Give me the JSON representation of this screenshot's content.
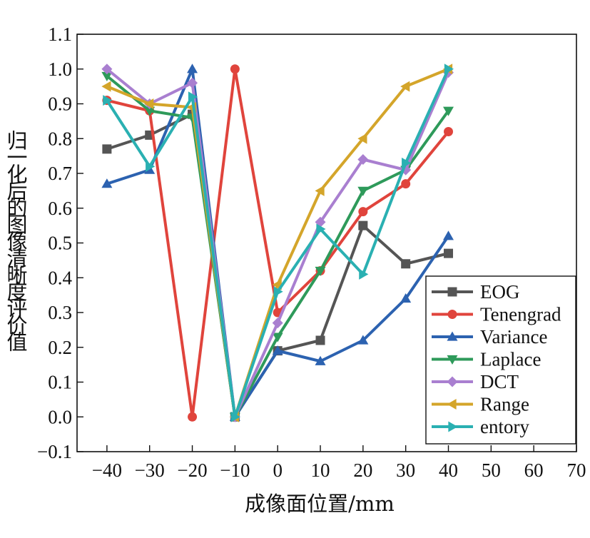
{
  "chart_data": {
    "type": "line",
    "title": "",
    "xlabel": "成像面位置/mm",
    "ylabel": "归一化后的图像清晰度评价值",
    "xlim": [
      -47,
      70
    ],
    "ylim": [
      -0.1,
      1.1
    ],
    "xticks": [
      -40,
      -30,
      -20,
      -10,
      0,
      10,
      20,
      30,
      40,
      50,
      60,
      70
    ],
    "xtick_labels": [
      "−40",
      "−30",
      "−20",
      "−10",
      "0",
      "10",
      "20",
      "30",
      "40",
      "50",
      "60",
      "70"
    ],
    "yticks": [
      -0.1,
      0.0,
      0.1,
      0.2,
      0.3,
      0.4,
      0.5,
      0.6,
      0.7,
      0.8,
      0.9,
      1.0,
      1.1
    ],
    "ytick_labels": [
      "−0.1",
      "0.0",
      "0.1",
      "0.2",
      "0.3",
      "0.4",
      "0.5",
      "0.6",
      "0.7",
      "0.8",
      "0.9",
      "1.0",
      "1.1"
    ],
    "grid": false,
    "legend_position": "bottom-right",
    "x": [
      -40,
      -30,
      -20,
      -10,
      0,
      10,
      20,
      30,
      40
    ],
    "series": [
      {
        "name": "EOG",
        "color": "#555555",
        "marker": "square",
        "values": [
          0.77,
          0.81,
          0.87,
          0.0,
          0.19,
          0.22,
          0.55,
          0.44,
          0.47
        ]
      },
      {
        "name": "Tenengrad",
        "color": "#e0443c",
        "marker": "circle",
        "values": [
          0.91,
          0.88,
          0.0,
          1.0,
          0.3,
          0.42,
          0.59,
          0.67,
          0.82
        ]
      },
      {
        "name": "Variance",
        "color": "#2c62b0",
        "marker": "triangle-up",
        "values": [
          0.67,
          0.71,
          1.0,
          0.0,
          0.19,
          0.16,
          0.22,
          0.34,
          0.52
        ]
      },
      {
        "name": "Laplace",
        "color": "#2e9a5a",
        "marker": "triangle-down",
        "values": [
          0.98,
          0.88,
          0.86,
          0.0,
          0.23,
          0.42,
          0.65,
          0.71,
          0.88
        ]
      },
      {
        "name": "DCT",
        "color": "#a97fd0",
        "marker": "diamond",
        "values": [
          1.0,
          0.9,
          0.96,
          0.0,
          0.27,
          0.56,
          0.74,
          0.71,
          0.99
        ]
      },
      {
        "name": "Range",
        "color": "#d4a52a",
        "marker": "triangle-left",
        "values": [
          0.95,
          0.9,
          0.89,
          0.0,
          0.38,
          0.65,
          0.8,
          0.95,
          1.0
        ]
      },
      {
        "name": "entory",
        "color": "#2ab0b2",
        "marker": "triangle-right",
        "values": [
          0.91,
          0.72,
          0.92,
          0.0,
          0.36,
          0.54,
          0.41,
          0.73,
          1.0
        ]
      }
    ]
  }
}
